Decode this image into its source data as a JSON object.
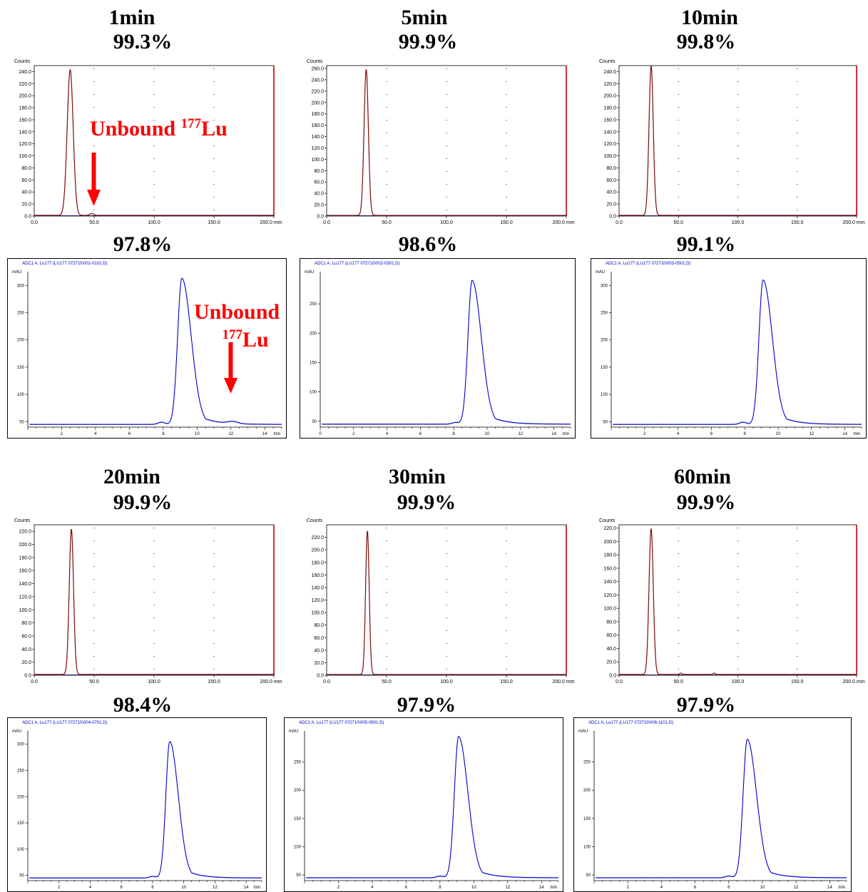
{
  "colors": {
    "tlc_trace": "#7b0a0a",
    "tlc_right_border": "#c00000",
    "hplc_trace": "#0000cc",
    "hplc_title": "#0000cc",
    "annotation": "#ff0000"
  },
  "panels": [
    {
      "time": "1min",
      "tlc_percent": "99.3%",
      "hplc_percent": "97.8%"
    },
    {
      "time": "5min",
      "tlc_percent": "99.9%",
      "hplc_percent": "98.6%"
    },
    {
      "time": "10min",
      "tlc_percent": "99.8%",
      "hplc_percent": "99.1%"
    },
    {
      "time": "20min",
      "tlc_percent": "99.9%",
      "hplc_percent": "98.4%"
    },
    {
      "time": "30min",
      "tlc_percent": "99.9%",
      "hplc_percent": "97.9%"
    },
    {
      "time": "60min",
      "tlc_percent": "99.9%",
      "hplc_percent": "97.9%"
    }
  ],
  "annotations": {
    "tlc_label_text": "Unbound ",
    "tlc_label_sup": "177",
    "tlc_label_elem": "Lu",
    "hplc_label_line1": "Unbound",
    "hplc_label_sup": "177",
    "hplc_label_elem": "Lu"
  },
  "chart_data": [
    {
      "type": "line",
      "name": "tlc-1min",
      "ylabel": "Counts",
      "xunit": "mm",
      "xlim": [
        0,
        200
      ],
      "ylim": [
        0,
        250
      ],
      "yticks": [
        0,
        20,
        40,
        60,
        80,
        100,
        120,
        140,
        160,
        180,
        200,
        220,
        240
      ],
      "xticks": [
        0,
        50,
        100,
        150,
        200
      ],
      "peaks": [
        {
          "x": 30,
          "height": 242,
          "width": 2.5
        },
        {
          "x": 48,
          "height": 3,
          "width": 1.5
        }
      ]
    },
    {
      "type": "line",
      "name": "tlc-5min",
      "ylabel": "Counts",
      "xunit": "mm",
      "xlim": [
        0,
        200
      ],
      "ylim": [
        0,
        265
      ],
      "yticks": [
        0,
        20,
        40,
        60,
        80,
        100,
        120,
        140,
        160,
        180,
        200,
        220,
        240,
        260
      ],
      "xticks": [
        0,
        50,
        100,
        150,
        200
      ],
      "peaks": [
        {
          "x": 33,
          "height": 257,
          "width": 1.8
        }
      ]
    },
    {
      "type": "line",
      "name": "tlc-10min",
      "ylabel": "Counts",
      "xunit": "mm",
      "xlim": [
        0,
        200
      ],
      "ylim": [
        0,
        250
      ],
      "yticks": [
        0,
        20,
        40,
        60,
        80,
        100,
        120,
        140,
        160,
        180,
        200,
        220,
        240
      ],
      "xticks": [
        0,
        50,
        100,
        150,
        200
      ],
      "peaks": [
        {
          "x": 27,
          "height": 248,
          "width": 1.8
        }
      ]
    },
    {
      "type": "line",
      "name": "hplc-1min",
      "title": "ADC1 A, Lu177 (LU177 072710\\001-0101.D)",
      "ylabel": "mAU",
      "xunit": "min",
      "xlim": [
        0,
        15
      ],
      "ylim": [
        40,
        320
      ],
      "yticks": [
        50,
        100,
        150,
        200,
        250,
        300
      ],
      "xticks": [
        2,
        4,
        6,
        8,
        10,
        12,
        14
      ],
      "baseline": 45,
      "peaks": [
        {
          "x": 9.1,
          "height": 268,
          "width_left": 0.25,
          "width_right": 0.55
        },
        {
          "x": 7.9,
          "height": 4,
          "width_left": 0.2,
          "width_right": 0.2
        },
        {
          "x": 12.1,
          "height": 4,
          "width_left": 0.3,
          "width_right": 0.3
        }
      ]
    },
    {
      "type": "line",
      "name": "hplc-5min",
      "title": "ADC1 A, Lu177 (LU177 072710\\002-0301.D)",
      "ylabel": "mAU",
      "xunit": "min",
      "xlim": [
        0,
        15
      ],
      "ylim": [
        40,
        300
      ],
      "yticks": [
        50,
        100,
        150,
        200,
        250
      ],
      "xticks": [
        0,
        2,
        4,
        6,
        8,
        10,
        12,
        14
      ],
      "baseline": 45,
      "peaks": [
        {
          "x": 9.1,
          "height": 245,
          "width_left": 0.25,
          "width_right": 0.55
        },
        {
          "x": 8.1,
          "height": 3,
          "width_left": 0.2,
          "width_right": 0.2
        }
      ]
    },
    {
      "type": "line",
      "name": "hplc-10min",
      "title": "ADC1 A, Lu177 (LU177 072710\\003-0501.D)",
      "ylabel": "mAU",
      "xunit": "min",
      "xlim": [
        0,
        15
      ],
      "ylim": [
        40,
        320
      ],
      "yticks": [
        50,
        100,
        150,
        200,
        250,
        300
      ],
      "xticks": [
        2,
        4,
        6,
        8,
        10,
        12,
        14
      ],
      "baseline": 45,
      "peaks": [
        {
          "x": 9.1,
          "height": 265,
          "width_left": 0.25,
          "width_right": 0.55
        },
        {
          "x": 7.9,
          "height": 4,
          "width_left": 0.2,
          "width_right": 0.2
        }
      ]
    },
    {
      "type": "line",
      "name": "tlc-20min",
      "ylabel": "Counts",
      "xunit": "mm",
      "xlim": [
        0,
        200
      ],
      "ylim": [
        0,
        230
      ],
      "yticks": [
        0,
        20,
        40,
        60,
        80,
        100,
        120,
        140,
        160,
        180,
        200,
        220
      ],
      "xticks": [
        0,
        50,
        100,
        150,
        200
      ],
      "peaks": [
        {
          "x": 31,
          "height": 222,
          "width": 1.8
        }
      ]
    },
    {
      "type": "line",
      "name": "tlc-30min",
      "ylabel": "Counts",
      "xunit": "mm",
      "xlim": [
        0,
        200
      ],
      "ylim": [
        0,
        240
      ],
      "yticks": [
        0,
        20,
        40,
        60,
        80,
        100,
        120,
        140,
        160,
        180,
        200,
        220
      ],
      "xticks": [
        0,
        50,
        100,
        150,
        200
      ],
      "peaks": [
        {
          "x": 34,
          "height": 229,
          "width": 1.5
        }
      ]
    },
    {
      "type": "line",
      "name": "tlc-60min",
      "ylabel": "Counts",
      "xunit": "mm",
      "xlim": [
        0,
        200
      ],
      "ylim": [
        0,
        225
      ],
      "yticks": [
        0,
        20,
        40,
        60,
        80,
        100,
        120,
        140,
        160,
        180,
        200,
        220
      ],
      "xticks": [
        0,
        50,
        100,
        150,
        200
      ],
      "peaks": [
        {
          "x": 27,
          "height": 218,
          "width": 1.8
        },
        {
          "x": 52,
          "height": 2,
          "width": 1
        },
        {
          "x": 80,
          "height": 2,
          "width": 1
        }
      ]
    },
    {
      "type": "line",
      "name": "hplc-20min",
      "title": "ADC1 A, Lu177 (LU177 072710\\004-0701.D)",
      "ylabel": "mAU",
      "xunit": "min",
      "xlim": [
        0,
        15
      ],
      "ylim": [
        40,
        320
      ],
      "yticks": [
        50,
        100,
        150,
        200,
        250,
        300
      ],
      "xticks": [
        2,
        4,
        6,
        8,
        10,
        12,
        14
      ],
      "baseline": 45,
      "peaks": [
        {
          "x": 9.1,
          "height": 260,
          "width_left": 0.25,
          "width_right": 0.55
        },
        {
          "x": 8.0,
          "height": 3,
          "width_left": 0.2,
          "width_right": 0.2
        }
      ]
    },
    {
      "type": "line",
      "name": "hplc-30min",
      "title": "ADC1 A, Lu177 (LU177 072710\\005-0901.D)",
      "ylabel": "mAU",
      "xunit": "min",
      "xlim": [
        0,
        15
      ],
      "ylim": [
        40,
        300
      ],
      "yticks": [
        50,
        100,
        150,
        200,
        250
      ],
      "xticks": [
        2,
        4,
        6,
        8,
        10,
        12,
        14
      ],
      "baseline": 45,
      "peaks": [
        {
          "x": 9.1,
          "height": 250,
          "width_left": 0.25,
          "width_right": 0.55
        },
        {
          "x": 8.0,
          "height": 3,
          "width_left": 0.2,
          "width_right": 0.2
        }
      ]
    },
    {
      "type": "line",
      "name": "hplc-60min",
      "title": "ADC1 A, Lu177 (LU177 072710\\006-1101.D)",
      "ylabel": "mAU",
      "xunit": "min",
      "xlim": [
        0,
        15
      ],
      "ylim": [
        40,
        300
      ],
      "yticks": [
        50,
        100,
        150,
        200,
        250
      ],
      "xticks": [
        2,
        4,
        6,
        8,
        10,
        12,
        14
      ],
      "baseline": 45,
      "peaks": [
        {
          "x": 9.1,
          "height": 245,
          "width_left": 0.25,
          "width_right": 0.55
        },
        {
          "x": 8.0,
          "height": 3,
          "width_left": 0.2,
          "width_right": 0.2
        }
      ]
    }
  ]
}
